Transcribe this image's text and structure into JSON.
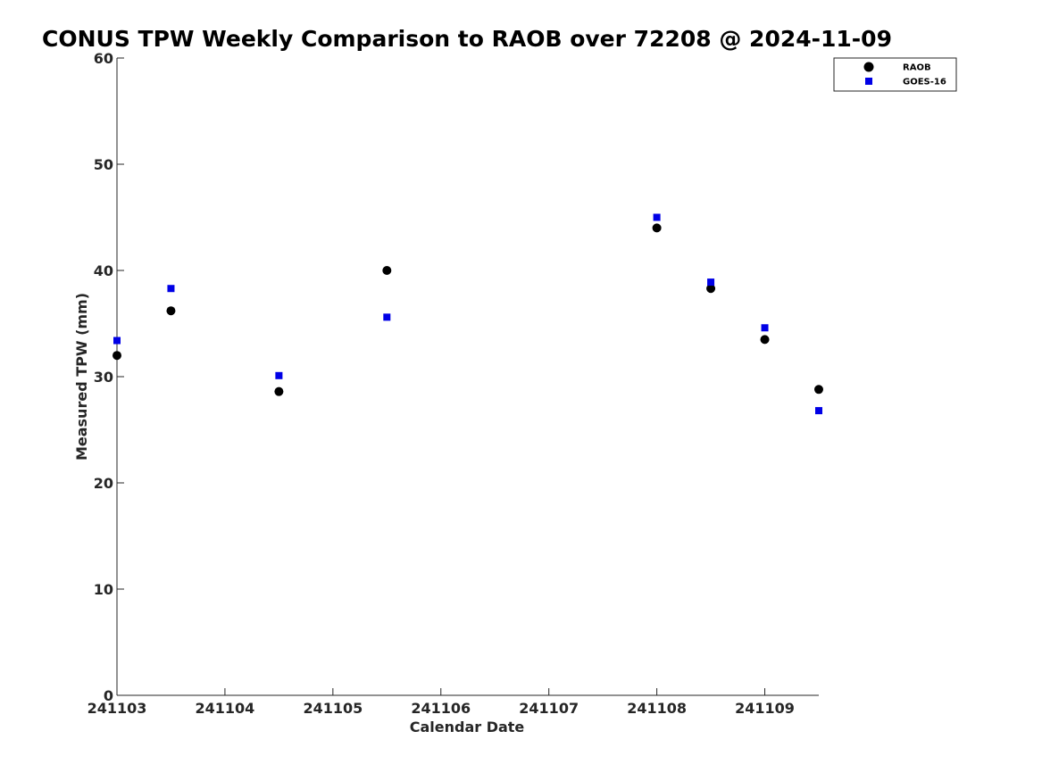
{
  "chart_data": {
    "type": "scatter",
    "title": "CONUS TPW Weekly Comparison to RAOB over 72208 @ 2024-11-09",
    "xlabel": "Calendar Date",
    "ylabel": "Measured TPW (mm)",
    "xlim": [
      0,
      6.5
    ],
    "ylim": [
      0,
      60
    ],
    "x_ticks": [
      0,
      1,
      2,
      3,
      4,
      5,
      6
    ],
    "x_tick_labels": [
      "241103",
      "241104",
      "241105",
      "241106",
      "241107",
      "241108",
      "241109"
    ],
    "y_ticks": [
      0,
      10,
      20,
      30,
      40,
      50,
      60
    ],
    "y_tick_labels": [
      "0",
      "10",
      "20",
      "30",
      "40",
      "50",
      "60"
    ],
    "grid": false,
    "legend_position": "top-right",
    "series": [
      {
        "name": "RAOB",
        "marker": "circle",
        "color": "#000000",
        "x": [
          0,
          0.5,
          1.5,
          2.5,
          5,
          5.5,
          6,
          6.5
        ],
        "y": [
          32.0,
          36.2,
          28.6,
          40.0,
          44.0,
          38.3,
          33.5,
          28.8
        ]
      },
      {
        "name": "GOES-16",
        "marker": "square",
        "color": "#0000e6",
        "x": [
          0,
          0.5,
          1.5,
          2.5,
          5,
          5.5,
          6,
          6.5
        ],
        "y": [
          33.4,
          38.3,
          30.1,
          35.6,
          45.0,
          38.9,
          34.6,
          26.8
        ]
      }
    ]
  }
}
